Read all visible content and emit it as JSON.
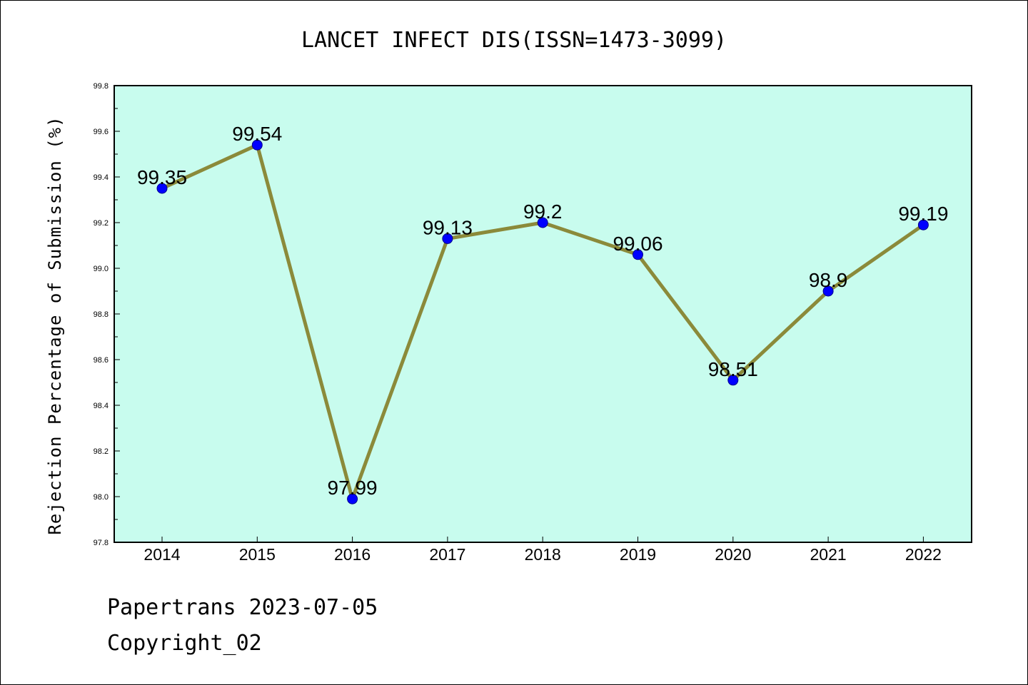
{
  "chart_data": {
    "type": "line",
    "title": "LANCET INFECT DIS(ISSN=1473-3099)",
    "xlabel": "",
    "ylabel": "Rejection Percentage of Submission (%)",
    "categories": [
      "2014",
      "2015",
      "2016",
      "2017",
      "2018",
      "2019",
      "2020",
      "2021",
      "2022"
    ],
    "series": [
      {
        "values": [
          99.35,
          99.54,
          97.99,
          99.13,
          99.2,
          99.06,
          98.51,
          98.9,
          99.19
        ],
        "labels": [
          "99.35",
          "99.54",
          "97.99",
          "99.13",
          "99.2",
          "99.06",
          "98.51",
          "98.9",
          "99.19"
        ]
      }
    ],
    "ylim": [
      97.8,
      99.8
    ],
    "yticks": [
      "97.8",
      "98.0",
      "98.2",
      "98.4",
      "98.6",
      "98.8",
      "99.0",
      "99.2",
      "99.4",
      "99.6",
      "99.8"
    ],
    "grid": false,
    "colors": {
      "plot_background": "#c8fcee",
      "line": "#8b8a3a",
      "marker": "#0000ff"
    }
  },
  "footer": {
    "line1": "Papertrans 2023-07-05",
    "line2": "Copyright_02"
  }
}
